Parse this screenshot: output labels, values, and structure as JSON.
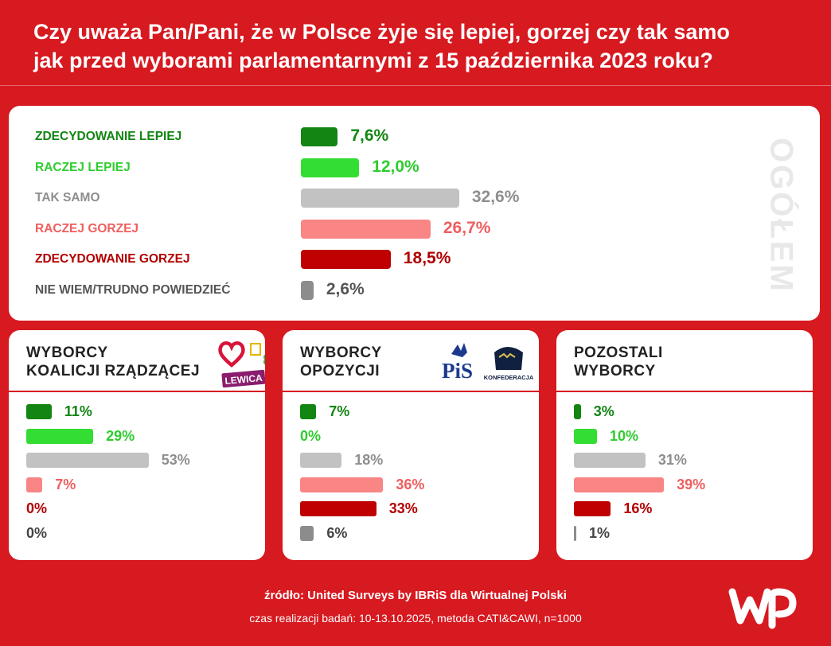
{
  "title_line1": "Czy uważa Pan/Pani, że w Polsce żyje się lepiej, gorzej czy tak samo",
  "title_line2": "jak przed wyborami parlamentarnymi z 15 października 2023 roku?",
  "colors": {
    "background": "#d71920",
    "zdecydowanie_lepiej": "#128512",
    "raczej_lepiej": "#33dd33",
    "tak_samo": "#c2c2c2",
    "raczej_gorzej": "#f98585",
    "zdecydowanie_gorzej": "#c00000",
    "nie_wiem": "#8c8c8c"
  },
  "chart_data": [
    {
      "type": "bar",
      "title": "OGÓŁEM",
      "categories": [
        "ZDECYDOWANIE LEPIEJ",
        "RACZEJ LEPIEJ",
        "TAK SAMO",
        "RACZEJ GORZEJ",
        "ZDECYDOWANIE GORZEJ",
        "NIE WIEM/TRUDNO POWIEDZIEĆ"
      ],
      "values": [
        7.6,
        12.0,
        32.6,
        26.7,
        18.5,
        2.6
      ],
      "value_labels": [
        "7,6%",
        "12,0%",
        "32,6%",
        "26,7%",
        "18,5%",
        "2,6%"
      ],
      "orientation": "horizontal"
    },
    {
      "type": "bar",
      "title_lines": [
        "WYBORCY",
        "KOALICJI RZĄDZĄCEJ"
      ],
      "logo_text": [
        "LEWICA"
      ],
      "values": [
        11,
        29,
        53,
        7,
        0,
        0
      ],
      "value_labels": [
        "11%",
        "29%",
        "53%",
        "7%",
        "0%",
        "0%"
      ],
      "orientation": "horizontal"
    },
    {
      "type": "bar",
      "title_lines": [
        "WYBORCY",
        "OPOZYCJI"
      ],
      "logo_text": [
        "PiS",
        "KONFEDERACJA"
      ],
      "values": [
        7,
        0,
        18,
        36,
        33,
        6
      ],
      "value_labels": [
        "7%",
        "0%",
        "18%",
        "36%",
        "33%",
        "6%"
      ],
      "orientation": "horizontal"
    },
    {
      "type": "bar",
      "title_lines": [
        "POZOSTALI",
        "WYBORCY"
      ],
      "logo_text": [],
      "values": [
        3,
        10,
        31,
        39,
        16,
        1
      ],
      "value_labels": [
        "3%",
        "10%",
        "31%",
        "39%",
        "16%",
        "1%"
      ],
      "orientation": "horizontal"
    }
  ],
  "footer": {
    "source": "źródło: United Surveys by IBRiS dla Wirtualnej Polski",
    "method": "czas realizacji badań: 10-13.10.2025, metoda CATI&CAWI, n=1000"
  }
}
